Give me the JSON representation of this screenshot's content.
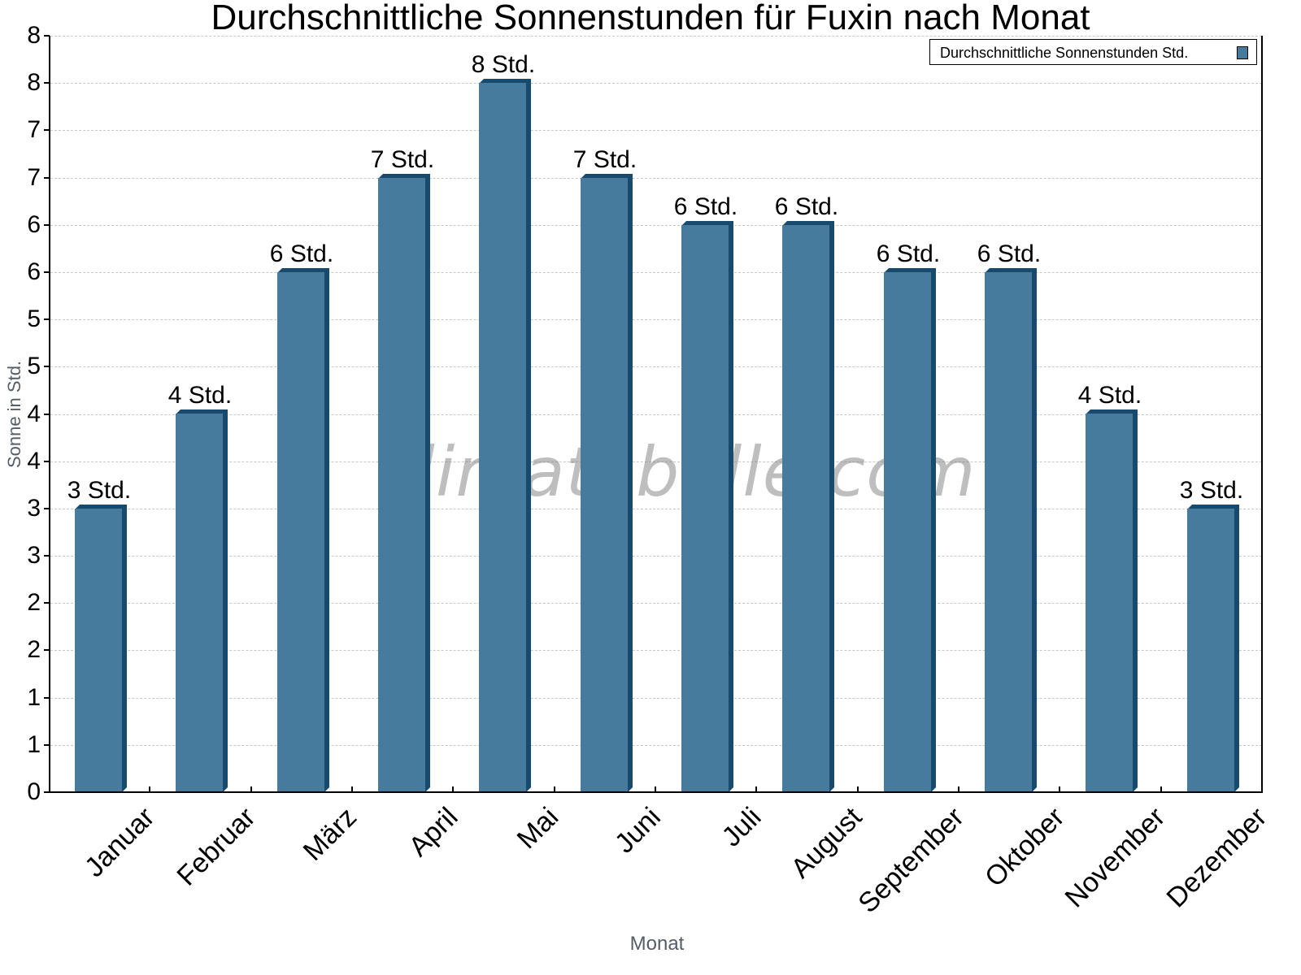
{
  "chart_data": {
    "type": "bar",
    "title": "Durchschnittliche Sonnenstunden für Fuxin nach Monat",
    "xlabel": "Monat",
    "ylabel": "Sonne in Std.",
    "categories": [
      "Januar",
      "Februar",
      "März",
      "April",
      "Mai",
      "Juni",
      "Juli",
      "August",
      "September",
      "Oktober",
      "November",
      "Dezember"
    ],
    "series": [
      {
        "name": "Durchschnittliche Sonnenstunden Std.",
        "color": "#477B9D",
        "values": [
          3.0,
          4.0,
          5.5,
          6.5,
          7.5,
          6.5,
          6.0,
          6.0,
          5.5,
          5.5,
          4.0,
          3.0
        ],
        "data_labels": [
          "3 Std.",
          "4 Std.",
          "6 Std.",
          "7 Std.",
          "8 Std.",
          "7 Std.",
          "6 Std.",
          "6 Std.",
          "6 Std.",
          "6 Std.",
          "4 Std.",
          "3 Std."
        ]
      }
    ],
    "ylim": [
      0,
      8
    ],
    "yticks": [
      0,
      0.5,
      1,
      1.5,
      2,
      2.5,
      3,
      3.5,
      4,
      4.5,
      5,
      5.5,
      6,
      6.5,
      7,
      7.5,
      8
    ],
    "ytick_labels": [
      "0",
      "1",
      "1",
      "2",
      "2",
      "3",
      "3",
      "4",
      "4",
      "5",
      "5",
      "6",
      "6",
      "7",
      "7",
      "8",
      "8"
    ],
    "grid": true,
    "legend_position": "top-right",
    "watermark": "klimatabelle.com"
  }
}
